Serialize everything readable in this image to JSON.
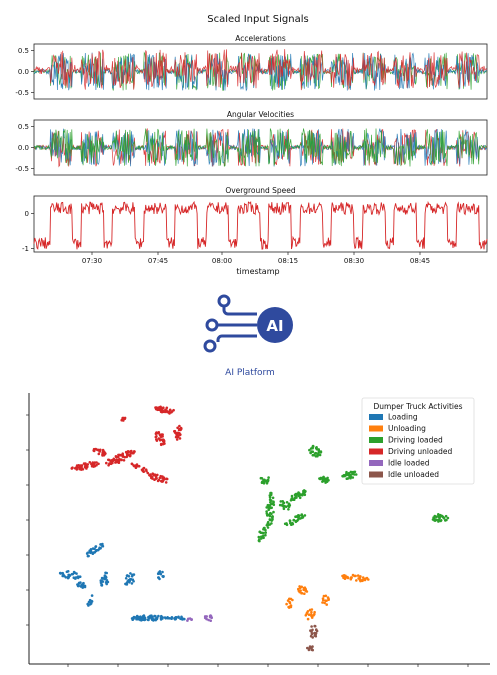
{
  "signals": {
    "title": "Scaled Input Signals",
    "xlabel": "timestamp",
    "x_ticks": [
      "07:30",
      "07:45",
      "08:00",
      "08:15",
      "08:30",
      "08:45"
    ],
    "colors": [
      "#1f77b4",
      "#d62728",
      "#2ca02c"
    ],
    "panels": [
      {
        "title": "Accelerations",
        "y_ticks": [
          "0.5",
          "0.0",
          "-0.5"
        ],
        "ylim": [
          -0.65,
          0.65
        ]
      },
      {
        "title": "Angular Velocities",
        "y_ticks": [
          "0.5",
          "0.0",
          "-0.5"
        ],
        "ylim": [
          -0.65,
          0.65
        ]
      },
      {
        "title": "Overground Speed",
        "y_ticks": [
          "0",
          "-1"
        ],
        "ylim": [
          -1.1,
          0.5
        ]
      }
    ]
  },
  "ai": {
    "label": "AI Platform",
    "icon_text": "AI",
    "color": "#2f4a9e"
  },
  "scatter": {
    "legend_title": "Dumper Truck Activities",
    "legend": [
      {
        "name": "Loading",
        "color": "#1f77b4"
      },
      {
        "name": "Unloading",
        "color": "#ff7f0e"
      },
      {
        "name": "Driving loaded",
        "color": "#2ca02c"
      },
      {
        "name": "Driving unloaded",
        "color": "#d62728"
      },
      {
        "name": "Idle loaded",
        "color": "#9467bd"
      },
      {
        "name": "Idle unloaded",
        "color": "#8c564b"
      }
    ]
  }
}
